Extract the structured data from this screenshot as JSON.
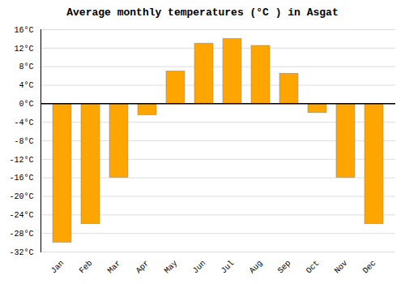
{
  "chart_data": {
    "type": "bar",
    "title": "Average monthly temperatures (°C ) in Asgat",
    "categories": [
      "Jan",
      "Feb",
      "Mar",
      "Apr",
      "May",
      "Jun",
      "Jul",
      "Aug",
      "Sep",
      "Oct",
      "Nov",
      "Dec"
    ],
    "values": [
      -30,
      -26,
      -16,
      -2.5,
      7,
      13,
      14,
      12.5,
      6.5,
      -2,
      -16,
      -26
    ],
    "color": "#FFA500",
    "ylim": [
      -32,
      16
    ],
    "yticks": [
      {
        "value": -32,
        "label": "-32°C"
      },
      {
        "value": -28,
        "label": "-28°C"
      },
      {
        "value": -24,
        "label": "-24°C"
      },
      {
        "value": -20,
        "label": "-20°C"
      },
      {
        "value": -16,
        "label": "-16°C"
      },
      {
        "value": -12,
        "label": "-12°C"
      },
      {
        "value": -8,
        "label": "-8°C"
      },
      {
        "value": -4,
        "label": "-4°C"
      },
      {
        "value": 0,
        "label": "0°C"
      },
      {
        "value": 4,
        "label": "4°C"
      },
      {
        "value": 8,
        "label": "8°C"
      },
      {
        "value": 12,
        "label": "12°C"
      },
      {
        "value": 16,
        "label": "16°C"
      }
    ],
    "grid": true
  }
}
